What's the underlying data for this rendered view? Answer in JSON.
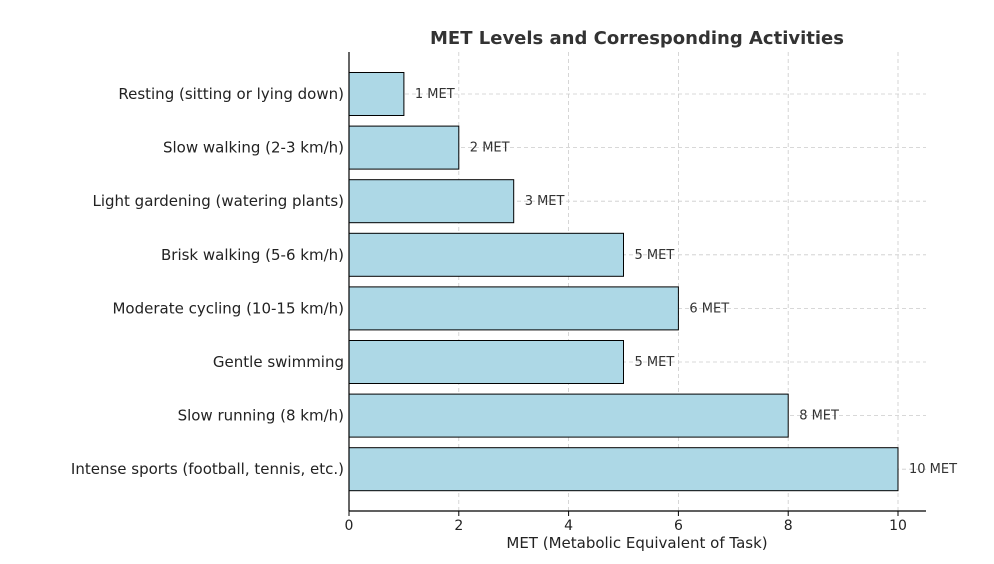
{
  "chart_data": {
    "type": "bar",
    "orientation": "horizontal",
    "title": "MET Levels and Corresponding Activities",
    "xlabel": "MET (Metabolic Equivalent of Task)",
    "ylabel": "",
    "categories": [
      "Resting (sitting or lying down)",
      "Slow walking (2-3 km/h)",
      "Light gardening (watering plants)",
      "Brisk walking (5-6 km/h)",
      "Moderate cycling (10-15 km/h)",
      "Gentle swimming",
      "Slow running (8 km/h)",
      "Intense sports (football, tennis, etc.)"
    ],
    "values": [
      1,
      2,
      3,
      5,
      6,
      5,
      8,
      10
    ],
    "data_labels": [
      "1 MET",
      "2 MET",
      "3 MET",
      "5 MET",
      "6 MET",
      "5 MET",
      "8 MET",
      "10 MET"
    ],
    "xlim": [
      0,
      10.5
    ],
    "xticks": [
      0,
      2,
      4,
      6,
      8,
      10
    ],
    "grid": true,
    "bar_color": "#add8e6",
    "edge_color": "#000000"
  }
}
